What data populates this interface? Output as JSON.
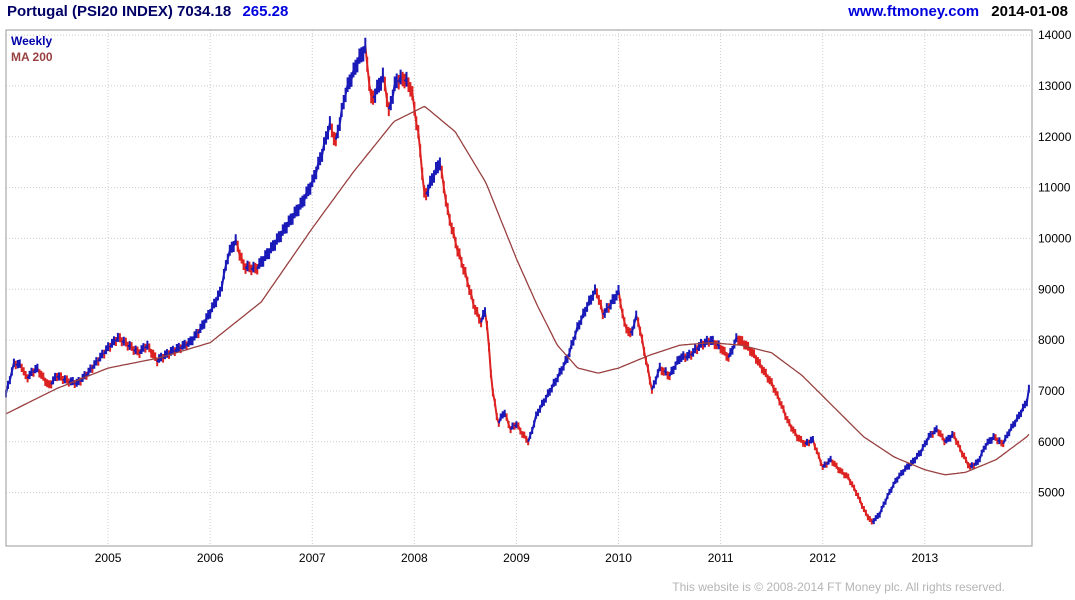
{
  "header": {
    "title": "Portugal (PSI20 INDEX) 7034.18",
    "change": "265.28",
    "site": "www.ftmoney.com",
    "date": "2014-01-08"
  },
  "legend": {
    "weekly": "Weekly",
    "ma200": "MA 200"
  },
  "footer": {
    "copyright": "This website is © 2008-2014 FT Money plc. All rights reserved."
  },
  "colors": {
    "up": "#1a1ab8",
    "down": "#dd2222",
    "ma": "#994040",
    "grid": "#cccccc",
    "border": "#999999",
    "axis_text": "#000000",
    "link": "#0000dd",
    "title": "#000066"
  },
  "chart_data": {
    "type": "candlestick",
    "title": "Portugal (PSI20 INDEX)",
    "interval": "Weekly",
    "overlay": "MA 200",
    "last_price": 7034.18,
    "change": 265.28,
    "as_of": "2014-01-08",
    "xlabel": "",
    "ylabel": "",
    "grid": true,
    "legend_position": "top-left",
    "x_ticks": [
      2005,
      2006,
      2007,
      2008,
      2009,
      2010,
      2011,
      2012,
      2013
    ],
    "y_ticks": [
      5000,
      6000,
      7000,
      8000,
      9000,
      10000,
      11000,
      12000,
      13000,
      14000
    ],
    "xlim": [
      2004.0,
      2014.05
    ],
    "ylim": [
      3950,
      14100
    ],
    "price_anchors": [
      [
        2004.0,
        6950
      ],
      [
        2004.08,
        7550
      ],
      [
        2004.15,
        7500
      ],
      [
        2004.2,
        7250
      ],
      [
        2004.3,
        7450
      ],
      [
        2004.42,
        7100
      ],
      [
        2004.5,
        7300
      ],
      [
        2004.6,
        7200
      ],
      [
        2004.7,
        7150
      ],
      [
        2004.8,
        7350
      ],
      [
        2004.9,
        7600
      ],
      [
        2005.0,
        7850
      ],
      [
        2005.1,
        8050
      ],
      [
        2005.2,
        7900
      ],
      [
        2005.3,
        7750
      ],
      [
        2005.38,
        7900
      ],
      [
        2005.48,
        7600
      ],
      [
        2005.6,
        7750
      ],
      [
        2005.7,
        7850
      ],
      [
        2005.8,
        7950
      ],
      [
        2005.9,
        8200
      ],
      [
        2006.0,
        8550
      ],
      [
        2006.1,
        8950
      ],
      [
        2006.18,
        9700
      ],
      [
        2006.25,
        9950
      ],
      [
        2006.33,
        9450
      ],
      [
        2006.45,
        9400
      ],
      [
        2006.6,
        9800
      ],
      [
        2006.75,
        10250
      ],
      [
        2006.9,
        10700
      ],
      [
        2007.0,
        11100
      ],
      [
        2007.1,
        11700
      ],
      [
        2007.17,
        12250
      ],
      [
        2007.23,
        11900
      ],
      [
        2007.33,
        12900
      ],
      [
        2007.45,
        13500
      ],
      [
        2007.52,
        13750
      ],
      [
        2007.58,
        12700
      ],
      [
        2007.65,
        13000
      ],
      [
        2007.7,
        13200
      ],
      [
        2007.75,
        12500
      ],
      [
        2007.82,
        13100
      ],
      [
        2007.9,
        13150
      ],
      [
        2007.97,
        12950
      ],
      [
        2008.05,
        11900
      ],
      [
        2008.1,
        10800
      ],
      [
        2008.18,
        11200
      ],
      [
        2008.25,
        11500
      ],
      [
        2008.33,
        10500
      ],
      [
        2008.42,
        9800
      ],
      [
        2008.5,
        9300
      ],
      [
        2008.58,
        8700
      ],
      [
        2008.65,
        8350
      ],
      [
        2008.7,
        8600
      ],
      [
        2008.76,
        7100
      ],
      [
        2008.82,
        6350
      ],
      [
        2008.88,
        6600
      ],
      [
        2008.94,
        6250
      ],
      [
        2009.0,
        6350
      ],
      [
        2009.06,
        6150
      ],
      [
        2009.12,
        6000
      ],
      [
        2009.2,
        6550
      ],
      [
        2009.3,
        6900
      ],
      [
        2009.4,
        7250
      ],
      [
        2009.5,
        7650
      ],
      [
        2009.6,
        8250
      ],
      [
        2009.7,
        8700
      ],
      [
        2009.78,
        9000
      ],
      [
        2009.85,
        8500
      ],
      [
        2009.92,
        8700
      ],
      [
        2010.0,
        8950
      ],
      [
        2010.06,
        8300
      ],
      [
        2010.12,
        8100
      ],
      [
        2010.18,
        8500
      ],
      [
        2010.25,
        7800
      ],
      [
        2010.33,
        7000
      ],
      [
        2010.4,
        7450
      ],
      [
        2010.5,
        7300
      ],
      [
        2010.6,
        7650
      ],
      [
        2010.7,
        7700
      ],
      [
        2010.8,
        7900
      ],
      [
        2010.9,
        8000
      ],
      [
        2011.0,
        7850
      ],
      [
        2011.08,
        7650
      ],
      [
        2011.16,
        8050
      ],
      [
        2011.25,
        7900
      ],
      [
        2011.33,
        7700
      ],
      [
        2011.42,
        7400
      ],
      [
        2011.5,
        7150
      ],
      [
        2011.58,
        6800
      ],
      [
        2011.66,
        6400
      ],
      [
        2011.75,
        6100
      ],
      [
        2011.83,
        5950
      ],
      [
        2011.9,
        6050
      ],
      [
        2012.0,
        5500
      ],
      [
        2012.08,
        5650
      ],
      [
        2012.16,
        5450
      ],
      [
        2012.25,
        5300
      ],
      [
        2012.33,
        5000
      ],
      [
        2012.42,
        4600
      ],
      [
        2012.48,
        4420
      ],
      [
        2012.55,
        4550
      ],
      [
        2012.64,
        4950
      ],
      [
        2012.72,
        5250
      ],
      [
        2012.8,
        5450
      ],
      [
        2012.88,
        5600
      ],
      [
        2012.96,
        5800
      ],
      [
        2013.04,
        6100
      ],
      [
        2013.12,
        6250
      ],
      [
        2013.2,
        6000
      ],
      [
        2013.28,
        6150
      ],
      [
        2013.36,
        5800
      ],
      [
        2013.44,
        5500
      ],
      [
        2013.52,
        5600
      ],
      [
        2013.6,
        5950
      ],
      [
        2013.68,
        6100
      ],
      [
        2013.76,
        5950
      ],
      [
        2013.84,
        6250
      ],
      [
        2013.92,
        6500
      ],
      [
        2014.0,
        6800
      ],
      [
        2014.02,
        7034
      ]
    ],
    "ma200_anchors": [
      [
        2004.0,
        6550
      ],
      [
        2004.5,
        7050
      ],
      [
        2005.0,
        7450
      ],
      [
        2005.5,
        7650
      ],
      [
        2006.0,
        7950
      ],
      [
        2006.5,
        8750
      ],
      [
        2007.0,
        10200
      ],
      [
        2007.4,
        11300
      ],
      [
        2007.8,
        12300
      ],
      [
        2008.1,
        12600
      ],
      [
        2008.4,
        12100
      ],
      [
        2008.7,
        11100
      ],
      [
        2009.0,
        9600
      ],
      [
        2009.2,
        8700
      ],
      [
        2009.4,
        7900
      ],
      [
        2009.6,
        7450
      ],
      [
        2009.8,
        7350
      ],
      [
        2010.0,
        7450
      ],
      [
        2010.3,
        7700
      ],
      [
        2010.6,
        7900
      ],
      [
        2010.9,
        7950
      ],
      [
        2011.2,
        7900
      ],
      [
        2011.5,
        7750
      ],
      [
        2011.8,
        7300
      ],
      [
        2012.1,
        6700
      ],
      [
        2012.4,
        6100
      ],
      [
        2012.7,
        5700
      ],
      [
        2013.0,
        5450
      ],
      [
        2013.2,
        5350
      ],
      [
        2013.4,
        5400
      ],
      [
        2013.7,
        5650
      ],
      [
        2014.0,
        6100
      ],
      [
        2014.02,
        6150
      ]
    ]
  }
}
